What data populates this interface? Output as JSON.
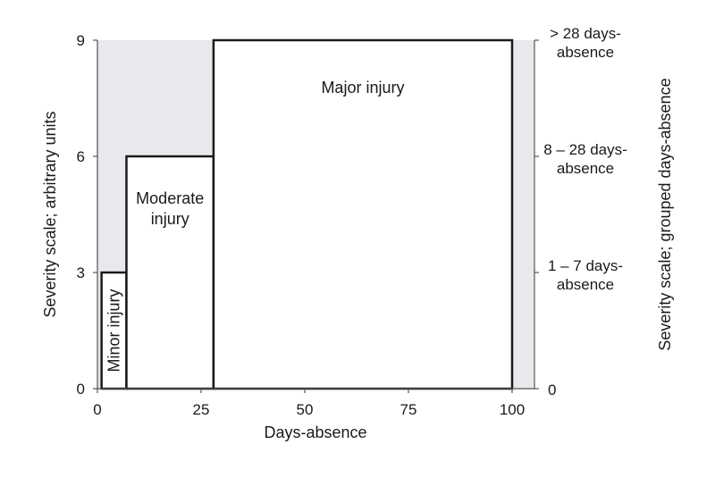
{
  "chart_data": {
    "type": "bar",
    "xlabel": "Days-absence",
    "ylabel": "Severity scale; arbitrary units",
    "y2label": "Severity scale; grouped days-absence",
    "xlim": [
      0,
      100
    ],
    "ylim": [
      0,
      9
    ],
    "x_ticks": [
      "0",
      "25",
      "50",
      "75",
      "100"
    ],
    "y_ticks": [
      "0",
      "3",
      "6",
      "9"
    ],
    "grid": false,
    "background": "#e8e9ed",
    "bar_fill": "#ffffff",
    "bar_edge": "#1a1a1a",
    "bars": [
      {
        "x0": 1,
        "x1": 7,
        "value": 3,
        "label": "Minor injury"
      },
      {
        "x0": 7,
        "x1": 28,
        "value": 6,
        "label_lines": [
          "Moderate",
          "injury"
        ]
      },
      {
        "x0": 28,
        "x1": 100,
        "value": 9,
        "label": "Major injury"
      }
    ],
    "right_axis_labels": [
      {
        "value": 0,
        "lines": [
          "0"
        ]
      },
      {
        "value": 3,
        "lines": [
          "1 – 7 days-",
          "absence"
        ]
      },
      {
        "value": 6,
        "lines": [
          "8 – 28 days-",
          "absence"
        ]
      },
      {
        "value": 9,
        "lines": [
          "> 28 days-",
          "absence"
        ]
      }
    ]
  }
}
